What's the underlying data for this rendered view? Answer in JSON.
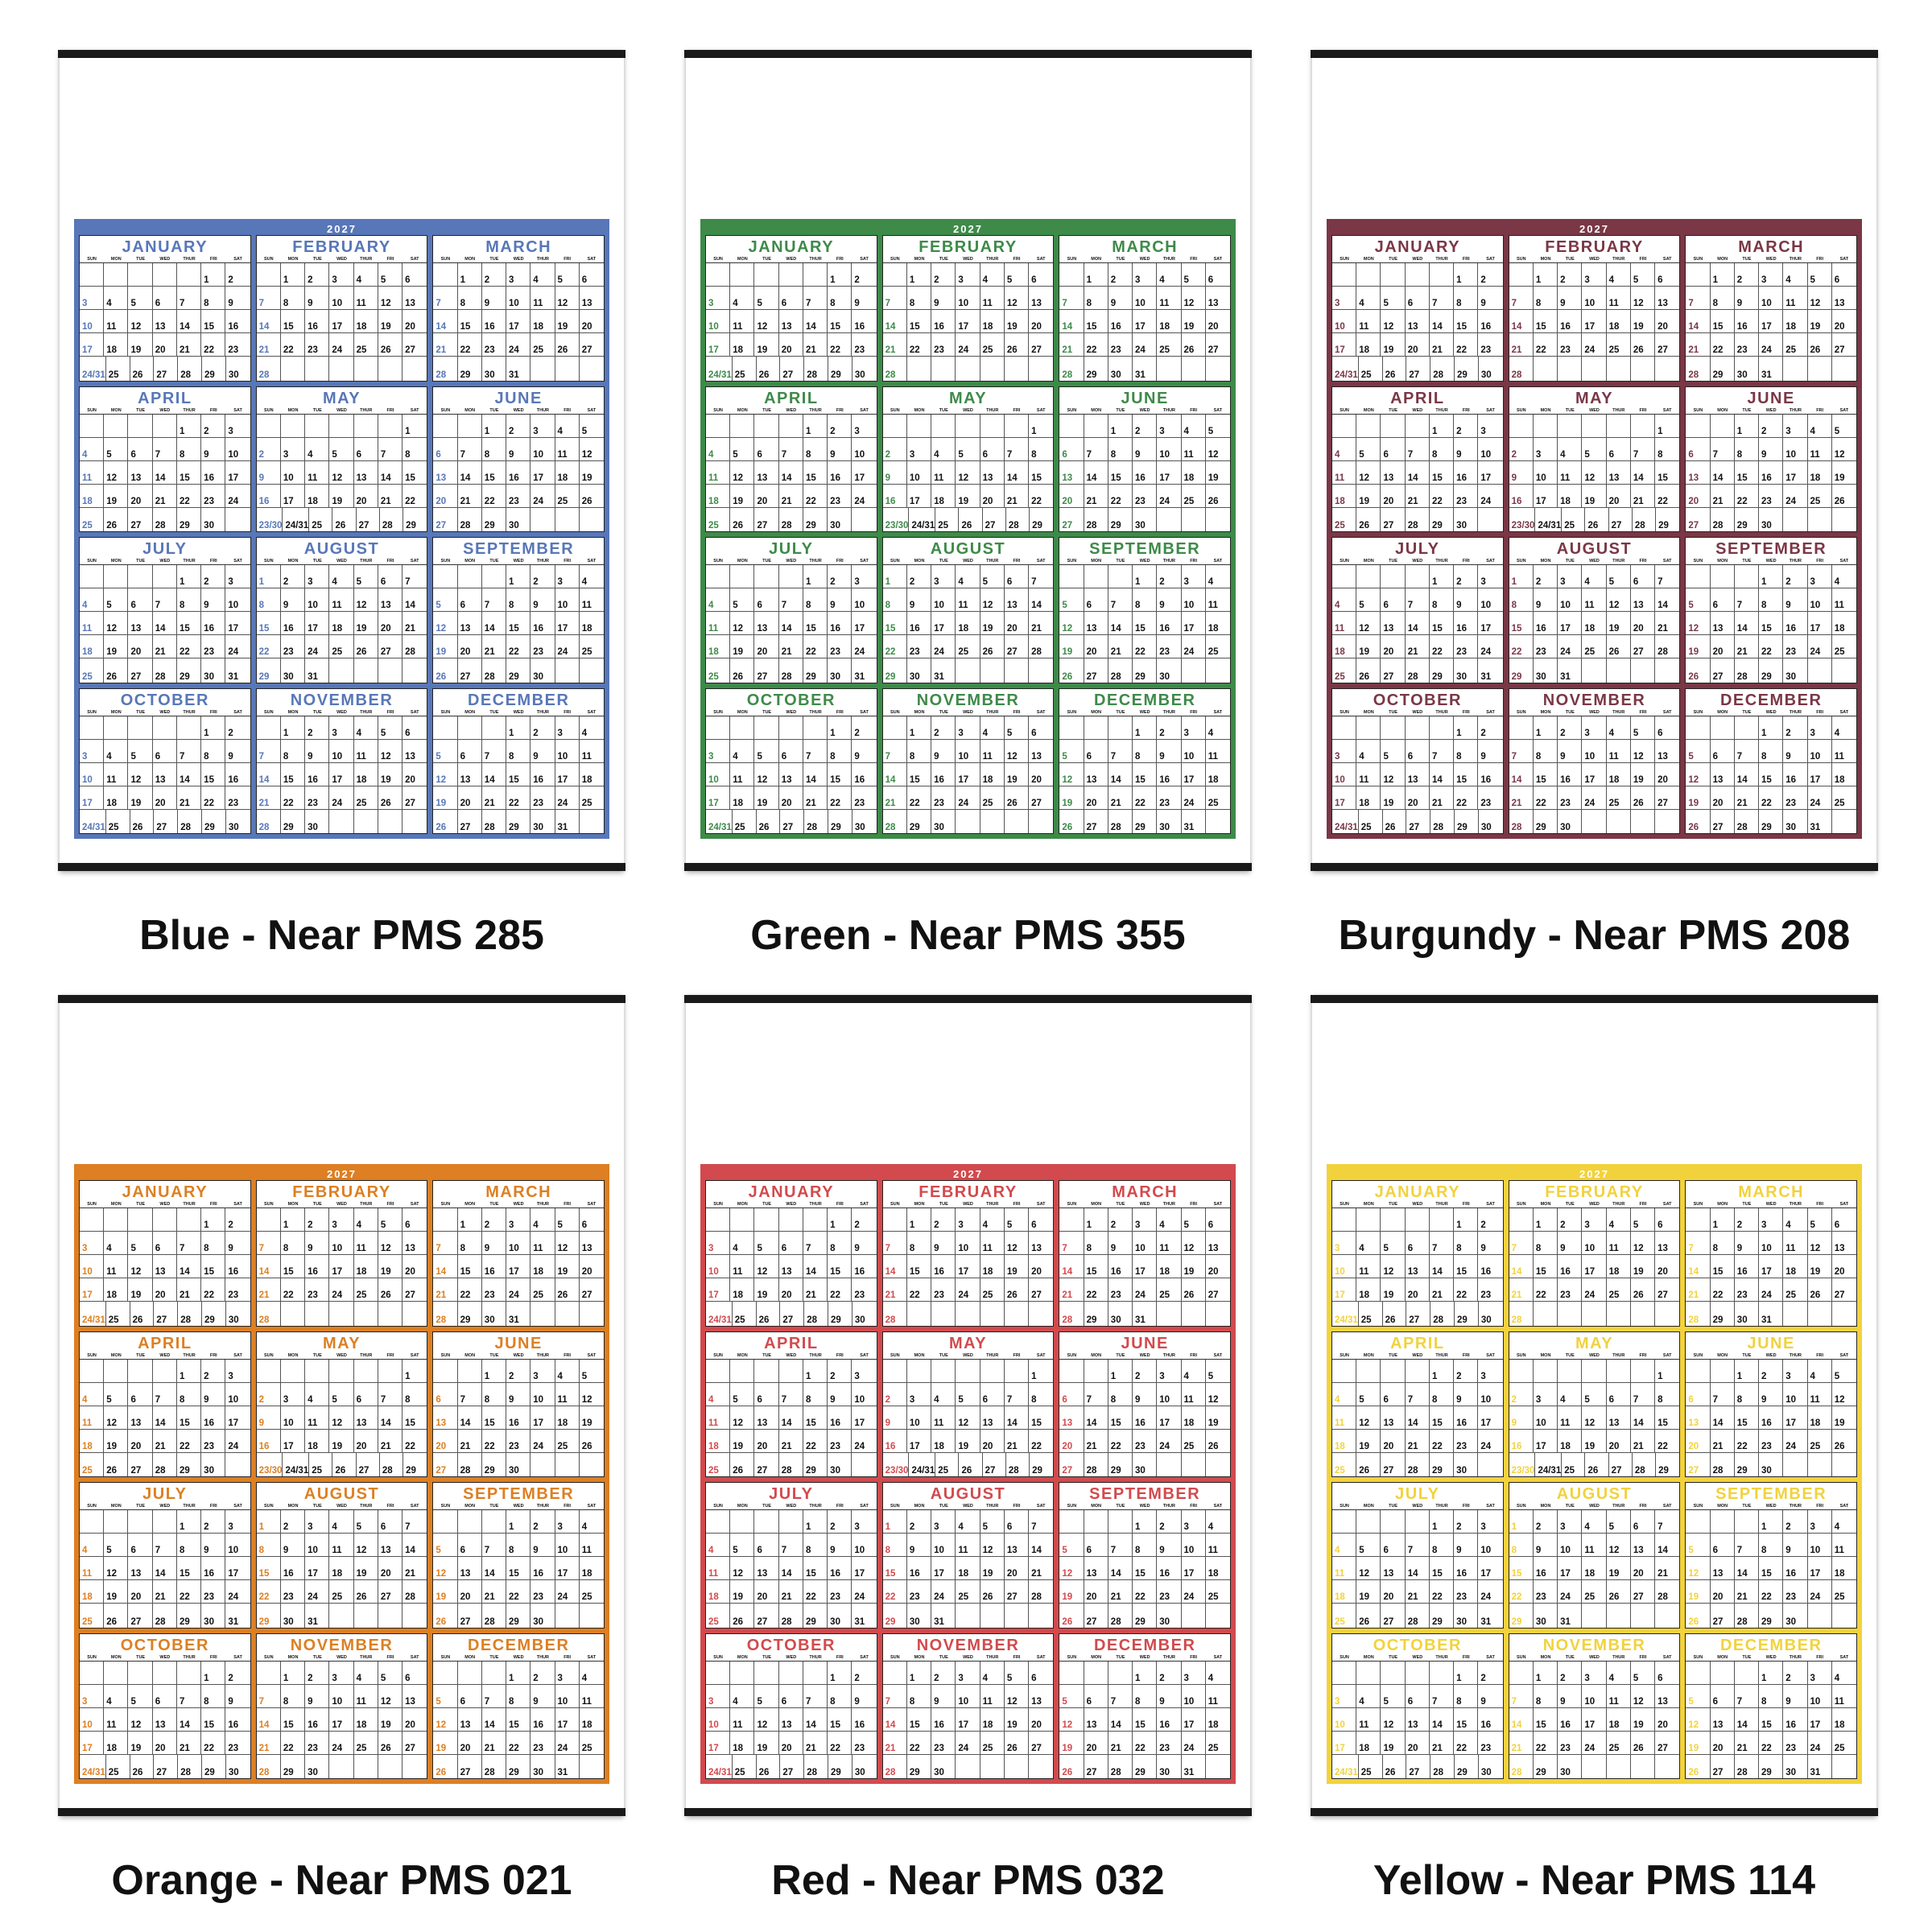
{
  "year": "2027",
  "day_names": [
    "SUN",
    "MON",
    "TUE",
    "WED",
    "THUR",
    "FRI",
    "SAT"
  ],
  "months": [
    {
      "name": "JANUARY",
      "start": 5,
      "days": 31
    },
    {
      "name": "FEBRUARY",
      "start": 1,
      "days": 28
    },
    {
      "name": "MARCH",
      "start": 1,
      "days": 31
    },
    {
      "name": "APRIL",
      "start": 4,
      "days": 30
    },
    {
      "name": "MAY",
      "start": 6,
      "days": 31
    },
    {
      "name": "JUNE",
      "start": 2,
      "days": 30
    },
    {
      "name": "JULY",
      "start": 4,
      "days": 31
    },
    {
      "name": "AUGUST",
      "start": 0,
      "days": 31
    },
    {
      "name": "SEPTEMBER",
      "start": 3,
      "days": 30
    },
    {
      "name": "OCTOBER",
      "start": 5,
      "days": 31
    },
    {
      "name": "NOVEMBER",
      "start": 1,
      "days": 30
    },
    {
      "name": "DECEMBER",
      "start": 3,
      "days": 31
    }
  ],
  "variants": [
    {
      "caption": "Blue - Near PMS 285",
      "color": "#5877b8"
    },
    {
      "caption": "Green - Near PMS 355",
      "color": "#3e8a49"
    },
    {
      "caption": "Burgundy - Near PMS 208",
      "color": "#7a3746"
    },
    {
      "caption": "Orange - Near PMS 021",
      "color": "#dd7f22"
    },
    {
      "caption": "Red - Near PMS 032",
      "color": "#d24a4d"
    },
    {
      "caption": "Yellow - Near PMS 114",
      "color": "#f2d23c"
    }
  ]
}
